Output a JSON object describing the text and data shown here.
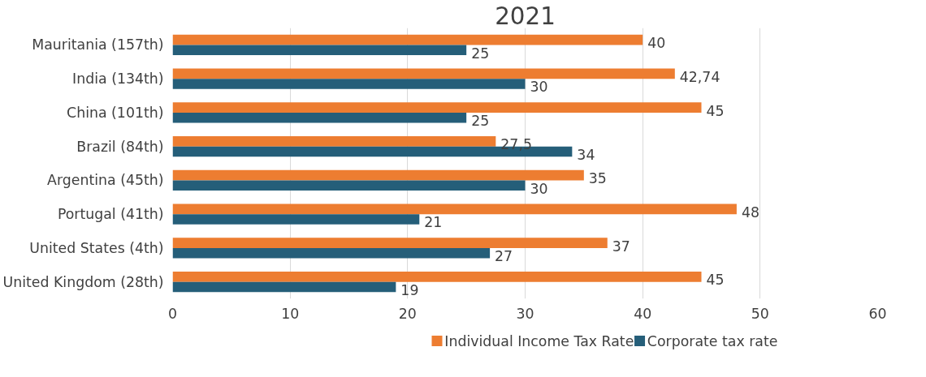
{
  "chart_data": {
    "type": "bar",
    "orientation": "horizontal",
    "title": "2021",
    "categories": [
      "Mauritania (157th)",
      "India (134th)",
      "China (101th)",
      "Brazil (84th)",
      "Argentina (45th)",
      "Portugal (41th)",
      "United States (4th)",
      "United Kingdom (28th)"
    ],
    "series": [
      {
        "name": "Individual Income Tax Rate",
        "color": "#ed7d31",
        "values": [
          40,
          42.74,
          45,
          27.5,
          35,
          48,
          37,
          45
        ],
        "value_labels": [
          "40",
          "42,74",
          "45",
          "27,5",
          "35",
          "48",
          "37",
          "45"
        ]
      },
      {
        "name": "Corporate tax rate",
        "color": "#255e79",
        "values": [
          25,
          30,
          25,
          34,
          30,
          21,
          27,
          19
        ],
        "value_labels": [
          "25",
          "30",
          "25",
          "34",
          "30",
          "21",
          "27",
          "19"
        ]
      }
    ],
    "xlim": [
      0,
      60
    ],
    "xticks": [
      0,
      10,
      20,
      30,
      40,
      50,
      60
    ],
    "grid": "x",
    "legend": "bottom"
  }
}
